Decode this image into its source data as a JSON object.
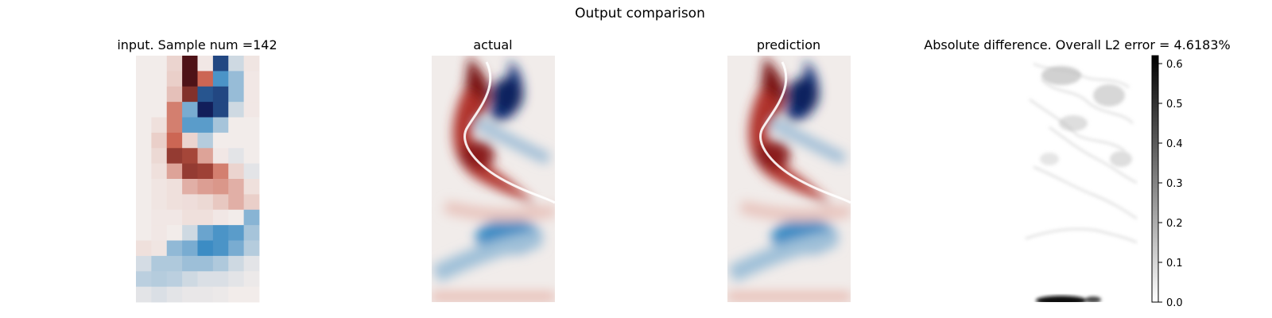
{
  "figure": {
    "suptitle": "Output comparison"
  },
  "chart_data": [
    {
      "type": "heatmap",
      "title": "input. Sample num =142",
      "grid": false,
      "axes": "off",
      "colormap": "diverging red-white-blue",
      "cols": 8,
      "rows": 16,
      "values": [
        [
          0.0,
          0.0,
          0.1,
          0.95,
          0.02,
          -0.85,
          -0.12,
          0.03
        ],
        [
          0.0,
          0.0,
          0.12,
          0.95,
          0.55,
          -0.55,
          -0.3,
          0.02
        ],
        [
          0.0,
          0.0,
          0.18,
          0.8,
          -0.8,
          -0.85,
          -0.3,
          0.02
        ],
        [
          0.0,
          0.0,
          0.45,
          -0.4,
          -1.0,
          -0.85,
          -0.12,
          0.02
        ],
        [
          0.0,
          0.05,
          0.45,
          -0.5,
          -0.5,
          -0.25,
          0.0,
          0.0
        ],
        [
          0.0,
          0.12,
          0.55,
          0.1,
          -0.2,
          0.0,
          0.0,
          0.0
        ],
        [
          0.0,
          0.08,
          0.75,
          0.7,
          0.3,
          0.02,
          -0.05,
          0.0
        ],
        [
          0.0,
          0.05,
          0.3,
          0.75,
          0.72,
          0.45,
          0.1,
          -0.05
        ],
        [
          0.0,
          0.03,
          0.05,
          0.25,
          0.32,
          0.35,
          0.25,
          0.05
        ],
        [
          0.0,
          0.03,
          0.05,
          0.06,
          0.08,
          0.15,
          0.25,
          0.12
        ],
        [
          0.0,
          0.02,
          0.02,
          0.05,
          0.05,
          0.02,
          0.0,
          -0.35
        ],
        [
          0.0,
          0.02,
          0.0,
          -0.12,
          -0.45,
          -0.55,
          -0.5,
          -0.25
        ],
        [
          0.05,
          0.03,
          -0.32,
          -0.4,
          -0.6,
          -0.55,
          -0.4,
          -0.2
        ],
        [
          -0.1,
          -0.22,
          -0.22,
          -0.28,
          -0.28,
          -0.22,
          -0.12,
          -0.05
        ],
        [
          -0.18,
          -0.2,
          -0.18,
          -0.12,
          -0.08,
          -0.08,
          -0.05,
          -0.02
        ],
        [
          -0.05,
          -0.08,
          -0.05,
          -0.03,
          -0.03,
          -0.02,
          0.0,
          0.0
        ]
      ]
    },
    {
      "type": "heatmap",
      "title": "actual",
      "grid": false,
      "axes": "off",
      "colormap": "diverging red-white-blue",
      "field": "smooth vortex street, red upper-left lobes and blue right lobes"
    },
    {
      "type": "heatmap",
      "title": "prediction",
      "grid": false,
      "axes": "off",
      "colormap": "diverging red-white-blue",
      "field": "smooth vortex street, red upper-left lobes and blue right lobes"
    },
    {
      "type": "heatmap",
      "title": "Absolute difference. Overall L2 error = 4.6183%",
      "grid": false,
      "axes": "off",
      "colormap": "white-to-black",
      "colorbar": {
        "ticks": [
          0.0,
          0.1,
          0.2,
          0.3,
          0.4,
          0.5,
          0.6
        ],
        "tick_labels": [
          "0.0",
          "0.1",
          "0.2",
          "0.3",
          "0.4",
          "0.5",
          "0.6"
        ],
        "range": [
          0,
          0.62
        ]
      }
    }
  ]
}
